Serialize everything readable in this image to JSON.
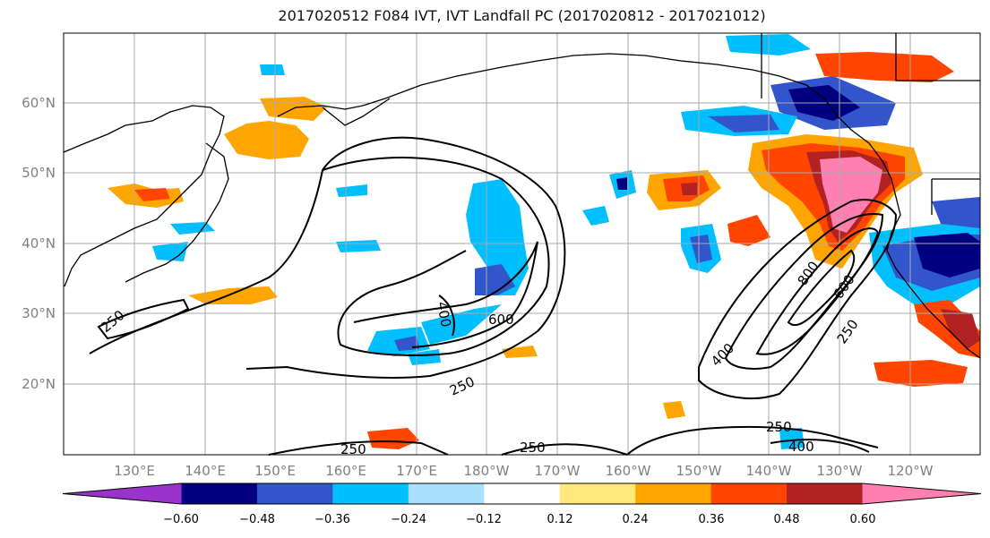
{
  "title": "2017020512 F084 IVT, IVT Landfall PC (2017020812 - 2017021012)",
  "map": {
    "lat_labels": [
      "60°N",
      "50°N",
      "40°N",
      "30°N",
      "20°N"
    ],
    "lon_labels": [
      "130°E",
      "140°E",
      "150°E",
      "160°E",
      "170°E",
      "180°W",
      "170°W",
      "160°W",
      "150°W",
      "140°W",
      "130°W",
      "120°W"
    ],
    "contour_labels": [
      {
        "text": "250"
      },
      {
        "text": "400"
      },
      {
        "text": "600"
      },
      {
        "text": "250"
      },
      {
        "text": "250"
      },
      {
        "text": "250"
      },
      {
        "text": "800"
      },
      {
        "text": "600"
      },
      {
        "text": "400"
      },
      {
        "text": "250"
      },
      {
        "text": "250"
      },
      {
        "text": "400"
      }
    ]
  },
  "colorbar": {
    "colors": [
      "#9933cc",
      "#000080",
      "#3355cc",
      "#00bfff",
      "#aadfff",
      "#ffffff",
      "#ffe97f",
      "#ffa500",
      "#ff4500",
      "#b22222",
      "#ff80b0"
    ],
    "tick_labels": [
      "−0.60",
      "−0.48",
      "−0.36",
      "−0.24",
      "−0.12",
      "0.12",
      "0.24",
      "0.36",
      "0.48",
      "0.60"
    ]
  }
}
